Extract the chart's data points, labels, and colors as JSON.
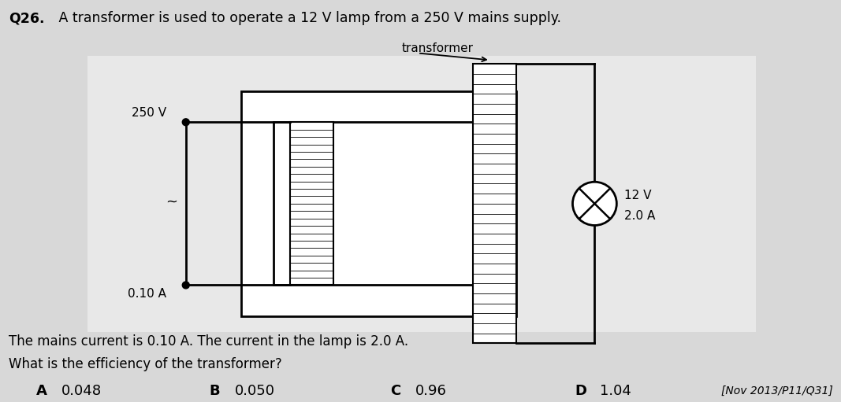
{
  "title_bold": "Q26.",
  "title_rest": " A transformer is used to operate a 12 V lamp from a 250 V mains supply.",
  "transformer_label": "transformer",
  "left_voltage": "250 V",
  "left_current": "0.10 A",
  "right_voltage": "12 V",
  "right_current": "2.0 A",
  "text_line1": "The mains current is 0.10 A. The current in the lamp is 2.0 A.",
  "text_line2": "What is the efficiency of the transformer?",
  "options": [
    {
      "letter": "A",
      "value": "0.048"
    },
    {
      "letter": "B",
      "value": "0.050"
    },
    {
      "letter": "C",
      "value": "0.96"
    },
    {
      "letter": "D",
      "value": "1.04"
    }
  ],
  "reference": "[Nov 2013/P11/Q31]",
  "bg_color": "#d8d8d8",
  "diagram_bg": "#ffffff"
}
